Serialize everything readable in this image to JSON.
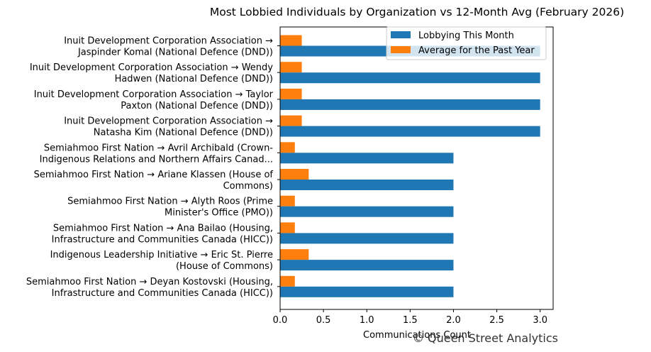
{
  "chart_data": {
    "type": "bar",
    "orientation": "horizontal",
    "title": "Most Lobbied Individuals by Organization vs 12-Month Avg (February 2026)",
    "xlabel": "Communications Count",
    "ylabel": "",
    "xlim": [
      0,
      3.15
    ],
    "xticks": [
      "0.0",
      "0.5",
      "1.0",
      "1.5",
      "2.0",
      "2.5",
      "3.0"
    ],
    "legend_position": "top-right",
    "grid": false,
    "categories": [
      [
        "Inuit Development Corporation Association →",
        "Jaspinder Komal (National Defence (DND))"
      ],
      [
        "Inuit Development Corporation Association → Wendy",
        "Hadwen (National Defence (DND))"
      ],
      [
        "Inuit Development Corporation Association → Taylor",
        "Paxton (National Defence (DND))"
      ],
      [
        "Inuit Development Corporation Association →",
        "Natasha Kim (National Defence (DND))"
      ],
      [
        "Semiahmoo First Nation → Avril  Archibald (Crown-",
        "Indigenous Relations and Northern Affairs Canad..."
      ],
      [
        "Semiahmoo First Nation → Ariane Klassen (House of",
        "Commons)"
      ],
      [
        "Semiahmoo First Nation → Alyth Roos (Prime",
        "Minister's Office (PMO))"
      ],
      [
        "Semiahmoo First Nation → Ana Bailao (Housing,",
        "Infrastructure and Communities Canada (HICC))"
      ],
      [
        "Indigenous Leadership Initiative → Eric St. Pierre",
        "(House of Commons)"
      ],
      [
        "Semiahmoo First Nation → Deyan Kostovski (Housing,",
        "Infrastructure and Communities Canada (HICC))"
      ]
    ],
    "series": [
      {
        "name": "Lobbying This Month",
        "color": "#1f77b4",
        "values": [
          3,
          3,
          3,
          3,
          2,
          2,
          2,
          2,
          2,
          2
        ]
      },
      {
        "name": "Average for the Past Year",
        "color": "#ff7f0e",
        "values": [
          0.25,
          0.25,
          0.25,
          0.25,
          0.17,
          0.33,
          0.17,
          0.17,
          0.33,
          0.17
        ]
      }
    ]
  },
  "watermark": "© Queen Street Analytics"
}
